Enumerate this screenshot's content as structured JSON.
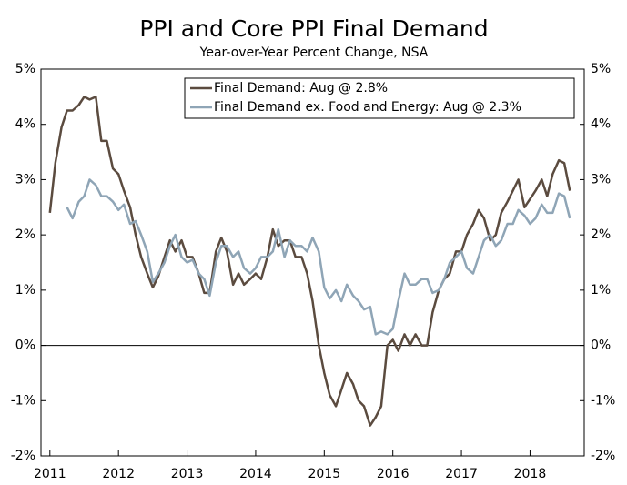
{
  "chart_data": {
    "type": "line",
    "title": "PPI and Core PPI Final Demand",
    "subtitle": "Year-over-Year Percent Change, NSA",
    "x": [
      2011,
      2011.08,
      2011.17,
      2011.25,
      2011.33,
      2011.42,
      2011.5,
      2011.58,
      2011.67,
      2011.75,
      2011.83,
      2011.92,
      2012,
      2012.08,
      2012.17,
      2012.25,
      2012.33,
      2012.42,
      2012.5,
      2012.58,
      2012.67,
      2012.75,
      2012.83,
      2012.92,
      2013,
      2013.08,
      2013.17,
      2013.25,
      2013.33,
      2013.42,
      2013.5,
      2013.58,
      2013.67,
      2013.75,
      2013.83,
      2013.92,
      2014,
      2014.08,
      2014.17,
      2014.25,
      2014.33,
      2014.42,
      2014.5,
      2014.58,
      2014.67,
      2014.75,
      2014.83,
      2014.92,
      2015,
      2015.08,
      2015.17,
      2015.25,
      2015.33,
      2015.42,
      2015.5,
      2015.58,
      2015.67,
      2015.75,
      2015.83,
      2015.92,
      2016,
      2016.08,
      2016.17,
      2016.25,
      2016.33,
      2016.42,
      2016.5,
      2016.58,
      2016.67,
      2016.75,
      2016.83,
      2016.92,
      2017,
      2017.08,
      2017.17,
      2017.25,
      2017.33,
      2017.42,
      2017.5,
      2017.58,
      2017.67,
      2017.75,
      2017.83,
      2017.92,
      2018,
      2018.08,
      2018.17,
      2018.25,
      2018.33,
      2018.42,
      2018.5,
      2018.58
    ],
    "series": [
      {
        "name": "Final Demand: Aug @ 2.8%",
        "color": "#5b4b3f",
        "values": [
          2.4,
          3.3,
          3.95,
          4.25,
          4.25,
          4.35,
          4.5,
          4.45,
          4.5,
          3.7,
          3.7,
          3.2,
          3.1,
          2.8,
          2.5,
          2.0,
          1.6,
          1.3,
          1.05,
          1.25,
          1.6,
          1.9,
          1.7,
          1.9,
          1.6,
          1.6,
          1.3,
          0.95,
          0.95,
          1.7,
          1.95,
          1.7,
          1.1,
          1.3,
          1.1,
          1.2,
          1.3,
          1.2,
          1.6,
          2.1,
          1.8,
          1.9,
          1.9,
          1.6,
          1.6,
          1.3,
          0.8,
          0.0,
          -0.5,
          -0.9,
          -1.1,
          -0.8,
          -0.5,
          -0.7,
          -1.0,
          -1.1,
          -1.45,
          -1.3,
          -1.1,
          0.0,
          0.1,
          -0.1,
          0.2,
          0.0,
          0.2,
          0.0,
          0.0,
          0.6,
          1.0,
          1.2,
          1.3,
          1.7,
          1.7,
          2.0,
          2.2,
          2.45,
          2.3,
          1.9,
          2.0,
          2.4,
          2.6,
          2.8,
          3.0,
          2.5,
          2.65,
          2.8,
          3.0,
          2.7,
          3.1,
          3.35,
          3.3,
          2.8
        ]
      },
      {
        "name": "Final Demand ex. Food and Energy: Aug @ 2.3%",
        "color": "#8fa5b6",
        "values": [
          null,
          null,
          null,
          2.5,
          2.3,
          2.6,
          2.7,
          3.0,
          2.9,
          2.7,
          2.7,
          2.6,
          2.45,
          2.55,
          2.2,
          2.25,
          2.0,
          1.7,
          1.15,
          1.3,
          1.5,
          1.8,
          2.0,
          1.6,
          1.5,
          1.55,
          1.3,
          1.2,
          0.9,
          1.5,
          1.8,
          1.8,
          1.6,
          1.7,
          1.4,
          1.3,
          1.4,
          1.6,
          1.6,
          1.7,
          2.1,
          1.6,
          1.9,
          1.8,
          1.8,
          1.7,
          1.95,
          1.7,
          1.05,
          0.85,
          1.0,
          0.8,
          1.1,
          0.9,
          0.8,
          0.65,
          0.7,
          0.2,
          0.25,
          0.2,
          0.3,
          0.8,
          1.3,
          1.1,
          1.1,
          1.2,
          1.2,
          0.95,
          1.0,
          1.2,
          1.5,
          1.6,
          1.7,
          1.4,
          1.3,
          1.6,
          1.9,
          2.0,
          1.8,
          1.9,
          2.2,
          2.2,
          2.45,
          2.35,
          2.2,
          2.3,
          2.55,
          2.4,
          2.4,
          2.75,
          2.7,
          2.3
        ]
      }
    ],
    "xlim": [
      2010.87,
      2018.79
    ],
    "xticks": [
      2011,
      2012,
      2013,
      2014,
      2015,
      2016,
      2017,
      2018
    ],
    "ylim": [
      -2,
      5
    ],
    "yticks": [
      {
        "value": -2,
        "label": "-2%"
      },
      {
        "value": -1,
        "label": "-1%"
      },
      {
        "value": 0,
        "label": "0%"
      },
      {
        "value": 1,
        "label": "1%"
      },
      {
        "value": 2,
        "label": "2%"
      },
      {
        "value": 3,
        "label": "3%"
      },
      {
        "value": 4,
        "label": "4%"
      },
      {
        "value": 5,
        "label": "5%"
      }
    ],
    "y2lim": [
      -2,
      5
    ],
    "y2ticks": [
      {
        "value": -2,
        "label": "-2%"
      },
      {
        "value": -1,
        "label": "-1%"
      },
      {
        "value": 0,
        "label": "0%"
      },
      {
        "value": 1,
        "label": "1%"
      },
      {
        "value": 2,
        "label": "2%"
      },
      {
        "value": 3,
        "label": "3%"
      },
      {
        "value": 4,
        "label": "4%"
      },
      {
        "value": 5,
        "label": "5%"
      }
    ],
    "legend": "upper right"
  }
}
